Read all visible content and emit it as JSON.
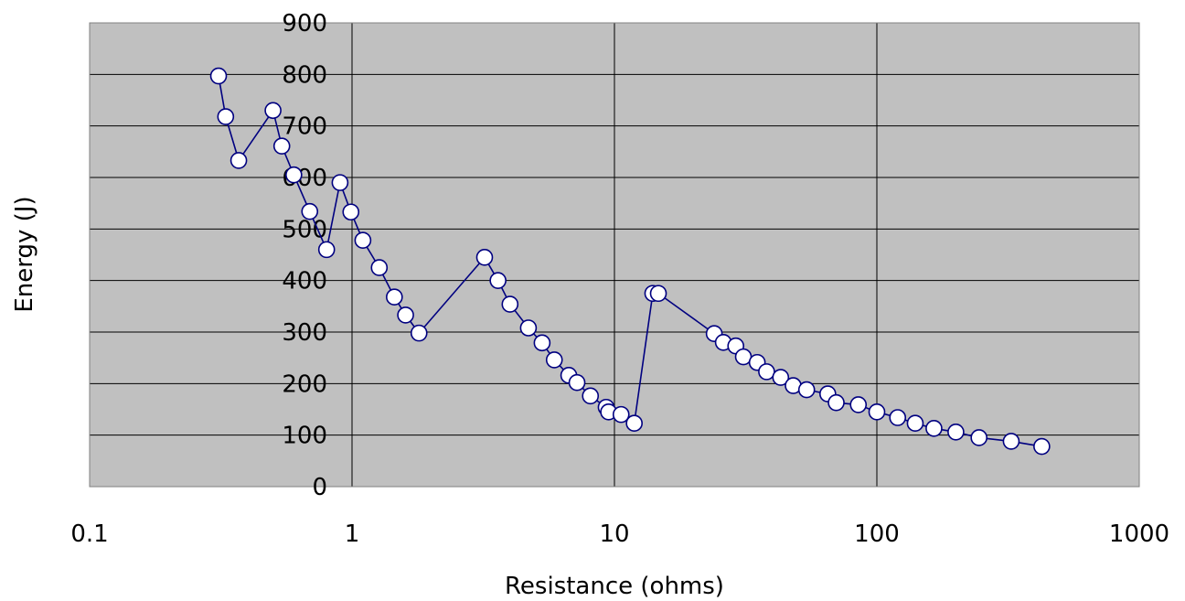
{
  "chart_data": {
    "type": "scatter",
    "title": "",
    "xlabel": "Resistance (ohms)",
    "ylabel": "Energy (J)",
    "x_scale": "log",
    "xlim": [
      0.1,
      1000
    ],
    "ylim": [
      0,
      900
    ],
    "x_ticks": [
      "0.1",
      "1",
      "10",
      "100",
      "1000"
    ],
    "y_ticks": [
      "0",
      "100",
      "200",
      "300",
      "400",
      "500",
      "600",
      "700",
      "800",
      "900"
    ],
    "grid": true,
    "legend": "none",
    "colors": {
      "plot_bg": "#c0c0c0",
      "line": "#000080",
      "marker_fill": "#ffffff",
      "grid": "#000000"
    },
    "series": [
      {
        "x": [
          0.31,
          0.33,
          0.37,
          0.5,
          0.54,
          0.6,
          0.69,
          0.8,
          0.9,
          0.99,
          1.1,
          1.27,
          1.45,
          1.6,
          1.8,
          3.2,
          3.6,
          4.0,
          4.7,
          5.3,
          5.9,
          6.7,
          7.2,
          8.1,
          9.3,
          9.5,
          10.6,
          11.9,
          14.0,
          14.7,
          24.0,
          26.0,
          29.0,
          31.0,
          35.0,
          38.0,
          43.0,
          48.0,
          54.0,
          65.0,
          70.0,
          85.0,
          100.0,
          120.0,
          140.0,
          165.0,
          200.0,
          245.0,
          325.0,
          425.0
        ],
        "y": [
          797,
          718,
          633,
          730,
          661,
          605,
          534,
          460,
          590,
          533,
          478,
          425,
          368,
          333,
          298,
          445,
          400,
          354,
          308,
          279,
          246,
          216,
          202,
          176,
          154,
          145,
          140,
          123,
          375,
          375,
          297,
          280,
          273,
          252,
          241,
          223,
          212,
          196,
          188,
          180,
          163,
          159,
          145,
          134,
          123,
          113,
          106,
          95,
          88,
          78
        ]
      }
    ]
  }
}
